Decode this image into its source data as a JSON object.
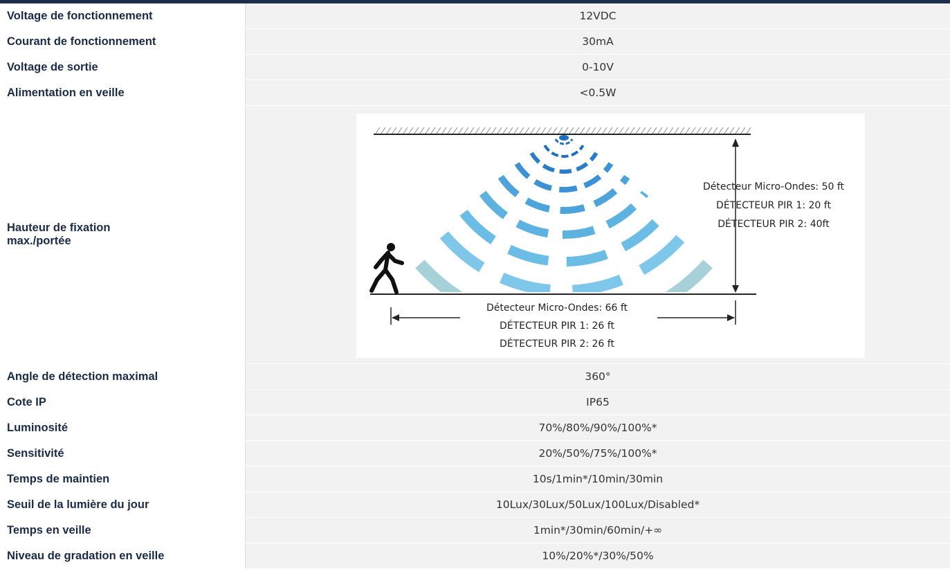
{
  "table": {
    "rows": [
      [
        "Voltage de fonctionnement",
        "12VDC"
      ],
      [
        "Courant de fonctionnement",
        "30mA"
      ],
      [
        "Voltage de sortie",
        "0-10V"
      ],
      [
        "Alimentation en veille",
        "<0.5W"
      ],
      [
        "Hauteur de fixation max./portée",
        null
      ],
      [
        "Angle de détection maximal",
        "360°"
      ],
      [
        "Cote IP",
        "IP65"
      ],
      [
        "Luminosité",
        "70%/80%/90%/100%*"
      ],
      [
        "Sensitivité",
        "20%/50%/75%/100%*"
      ],
      [
        "Temps de maintien",
        "10s/1min*/10min/30min"
      ],
      [
        "Seuil de la lumière du  jour",
        "10Lux/30Lux/50Lux/100Lux/Disabled*"
      ],
      [
        "Temps en veille",
        "1min*/30min/60min/+∞"
      ],
      [
        "Niveau de gradation en veille",
        "10%/20%*/30%/50%"
      ]
    ]
  },
  "diagram": {
    "height_labels": [
      "Détecteur Micro-Ondes: 50 ft",
      "DÉTECTEUR PIR 1: 20 ft",
      "DÉTECTEUR PIR 2: 40ft"
    ],
    "range_labels": [
      "Détecteur Micro-Ondes: 66 ft",
      "DÉTECTEUR PIR 1: 26 ft",
      "DÉTECTEUR PIR 2: 26 ft"
    ]
  }
}
